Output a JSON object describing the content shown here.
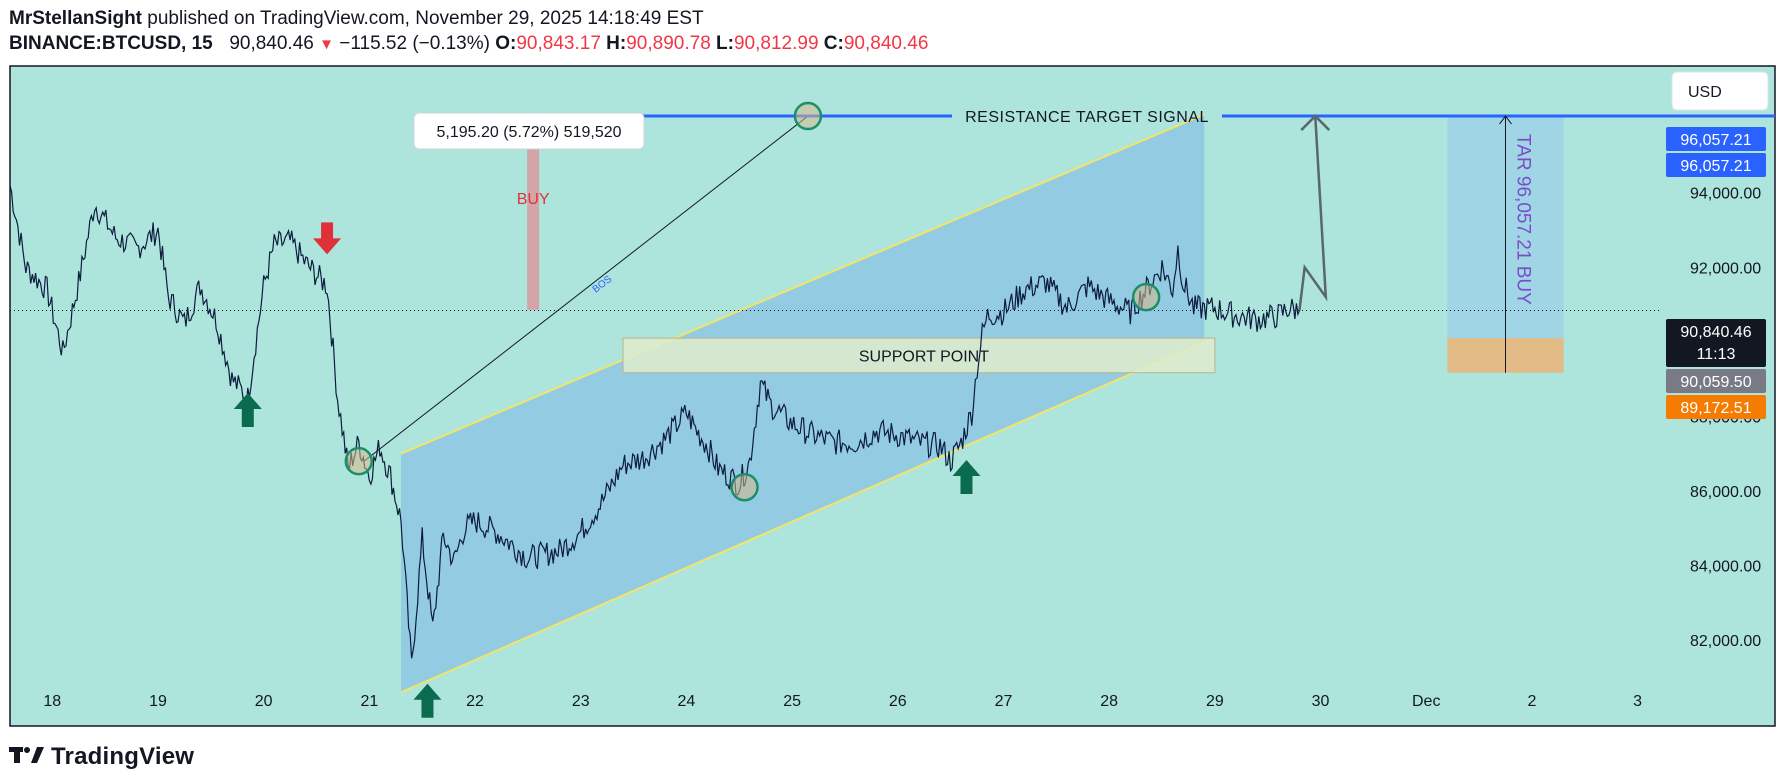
{
  "header": {
    "author": "MrStellanSight",
    "published_text": "published on TradingView.com, November 29, 2025 14:18:49 EST",
    "symbol": "BINANCE:BTCUSD, 15",
    "last": "90,840.46",
    "change": "−115.52 (−0.13%)",
    "o_label": "O:",
    "o": "90,843.17",
    "h_label": "H:",
    "h": "90,890.78",
    "l_label": "L:",
    "l": "90,812.99",
    "c_label": "C:",
    "c": "90,840.46"
  },
  "footer": {
    "brand": "TradingView"
  },
  "colors": {
    "background": "#ade5dc",
    "candles": "#0d1b3e",
    "channel_fill": "#8fc8e2",
    "channel_edge": "#f2e46b",
    "resistance_line": "#2962ff",
    "support_zone": "#dfeccb",
    "target_zone": "#9fd3e6",
    "target_zone_orange": "#e3bb86",
    "up_arrow": "#0b6b4f",
    "down_arrow": "#e0313a",
    "buy_bar": "#d99aa0",
    "buy_text": "#e0313a",
    "circle": "#d6b98a",
    "tar_text": "#7b4cc9",
    "label_blue": "#2962ff",
    "label_black": "#131722",
    "label_gray": "#787b86",
    "label_orange": "#f57c00"
  },
  "chart_data": {
    "type": "line",
    "symbol": "BINANCE:BTCUSD",
    "interval": "15",
    "currency": "USD",
    "x_tick_labels": [
      "18",
      "19",
      "20",
      "21",
      "22",
      "23",
      "24",
      "25",
      "26",
      "27",
      "28",
      "29",
      "30",
      "Dec",
      "2",
      "3"
    ],
    "x_tick_days": [
      18,
      19,
      20,
      21,
      22,
      23,
      24,
      25,
      26,
      27,
      28,
      29,
      30,
      31,
      32,
      33
    ],
    "y_ticks": [
      82000,
      84000,
      86000,
      88000,
      90000,
      92000,
      94000
    ],
    "y_tick_labels": [
      "82,000.00",
      "84,000.00",
      "86,000.00",
      "88,000.00",
      "90,000.00",
      "92,000.00",
      "94,000.00"
    ],
    "ylim": [
      80500,
      97400
    ],
    "xlim_days": [
      17.6,
      34.3
    ],
    "price_series": {
      "x_days": [
        17.6,
        17.75,
        17.95,
        18.1,
        18.25,
        18.4,
        18.6,
        18.8,
        19.0,
        19.1,
        19.25,
        19.4,
        19.55,
        19.7,
        19.85,
        20.0,
        20.1,
        20.25,
        20.4,
        20.5,
        20.6,
        20.7,
        20.8,
        20.9,
        21.0,
        21.1,
        21.2,
        21.3,
        21.4,
        21.5,
        21.6,
        21.7,
        21.8,
        21.9,
        22.0,
        22.2,
        22.5,
        22.8,
        23.0,
        23.2,
        23.4,
        23.6,
        23.8,
        24.0,
        24.1,
        24.2,
        24.3,
        24.5,
        24.6,
        24.7,
        24.8,
        25.0,
        25.2,
        25.4,
        25.6,
        25.8,
        26.0,
        26.2,
        26.4,
        26.5,
        26.6,
        26.7,
        26.75,
        26.8,
        26.85,
        27.0,
        27.2,
        27.4,
        27.6,
        27.8,
        28.0,
        28.2,
        28.4,
        28.5,
        28.6,
        28.65,
        28.7,
        28.8,
        28.9,
        29.0,
        29.2,
        29.4,
        29.6,
        29.7,
        29.8
      ],
      "close": [
        94200,
        92000,
        91400,
        89700,
        91600,
        93700,
        92800,
        92500,
        93000,
        91200,
        90500,
        91500,
        90600,
        89000,
        88500,
        91500,
        92600,
        92700,
        92100,
        91800,
        91500,
        88500,
        86600,
        87300,
        86400,
        87200,
        86400,
        85200,
        81300,
        84700,
        82300,
        84800,
        84100,
        85000,
        85200,
        84900,
        84200,
        84400,
        84900,
        85700,
        86700,
        86900,
        87400,
        88100,
        87600,
        87200,
        86600,
        86200,
        86800,
        88900,
        88300,
        87800,
        87500,
        87300,
        87300,
        87600,
        87500,
        87300,
        87200,
        86800,
        87300,
        88100,
        89300,
        90200,
        90700,
        90800,
        91400,
        91600,
        90900,
        91500,
        91100,
        90800,
        91600,
        92000,
        91400,
        92500,
        91600,
        90900,
        90900,
        90900,
        90700,
        90600,
        90700,
        90900,
        90840
      ]
    },
    "last_price": 90840.46,
    "annotations": {
      "resistance": {
        "label": "RESISTANCE  TARGET  SIGNAL",
        "price": 96057.21,
        "from_day": 22.5,
        "to_day": 34.3
      },
      "support": {
        "label": "SUPPORT  POINT",
        "top": 90100,
        "bottom": 89172.51,
        "from_day": 23.4,
        "to_day": 29.0
      },
      "channel": {
        "lower_start": [
          21.3,
          80600
        ],
        "lower_end": [
          28.9,
          90000
        ],
        "upper_start": [
          21.3,
          87000
        ],
        "upper_end": [
          28.9,
          96100
        ]
      },
      "measure": {
        "text": "5,195.20 (5.72%) 519,520",
        "label": "BUY",
        "day": 22.55,
        "from": 90862,
        "to": 96057.21
      },
      "bos": {
        "label": "BOS",
        "from": [
          20.95,
          86800
        ],
        "to": [
          25.15,
          96057.21
        ]
      },
      "target_box": {
        "label": "TAR  96,057.21  BUY",
        "from_day": 31.2,
        "to_day": 32.3,
        "top": 96057.21,
        "bottom": 89172.51,
        "orange_top": 90100
      },
      "projection_path": [
        [
          29.8,
          90840
        ],
        [
          29.85,
          92000
        ],
        [
          30.05,
          91200
        ],
        [
          29.95,
          96057.21
        ]
      ],
      "up_arrows": [
        [
          19.85,
          88200
        ],
        [
          21.55,
          80400
        ],
        [
          26.65,
          86400
        ]
      ],
      "down_arrows": [
        [
          20.6,
          92400
        ]
      ],
      "circles": [
        [
          20.9,
          86800
        ],
        [
          25.15,
          96057.21
        ],
        [
          24.55,
          86100
        ],
        [
          28.35,
          91200
        ]
      ]
    },
    "price_labels": [
      {
        "text": "USD",
        "kind": "currency"
      },
      {
        "text": "96,057.21",
        "price": 96057.21,
        "color": "blue",
        "slot": "upper"
      },
      {
        "text": "96,057.21",
        "price": 96057.21,
        "color": "blue",
        "slot": "lower"
      },
      {
        "text": "90,840.46",
        "price": 90840.46,
        "color": "black",
        "subtext": "11:13"
      },
      {
        "text": "90,059.50",
        "price": 90059.5,
        "color": "gray"
      },
      {
        "text": "89,172.51",
        "price": 89172.51,
        "color": "orange"
      }
    ]
  }
}
